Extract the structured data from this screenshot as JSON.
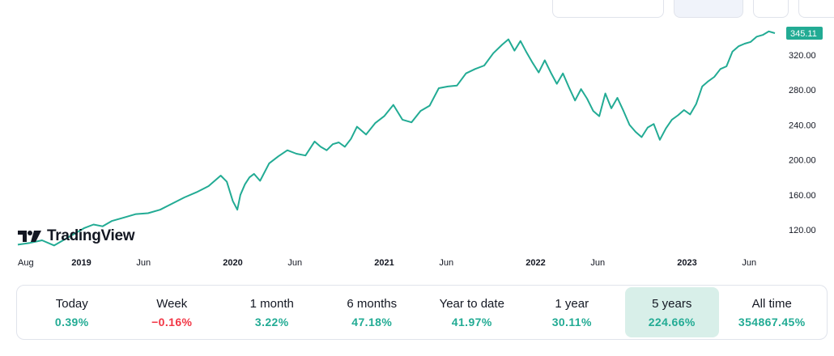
{
  "colors": {
    "line": "#22ab94",
    "accent": "#22ab94",
    "negative": "#f23645",
    "axis_text": "#131722",
    "active_bg": "#d8efe9"
  },
  "logo": {
    "text": "TradingView",
    "icon": "tradingview-logo-icon"
  },
  "chart_data": {
    "type": "area",
    "price_label": "345.11",
    "y_ticks": [
      "320.00",
      "280.00",
      "240.00",
      "200.00",
      "160.00",
      "120.00"
    ],
    "y_tick_values": [
      320,
      280,
      240,
      200,
      160,
      120
    ],
    "x_ticks": [
      {
        "label": "Aug",
        "t": 0.0,
        "bold": false
      },
      {
        "label": "2019",
        "t": 0.42,
        "bold": true
      },
      {
        "label": "Jun",
        "t": 0.83,
        "bold": false
      },
      {
        "label": "2020",
        "t": 1.42,
        "bold": true
      },
      {
        "label": "Jun",
        "t": 1.83,
        "bold": false
      },
      {
        "label": "2021",
        "t": 2.42,
        "bold": true
      },
      {
        "label": "Jun",
        "t": 2.83,
        "bold": false
      },
      {
        "label": "2022",
        "t": 3.42,
        "bold": true
      },
      {
        "label": "Jun",
        "t": 3.83,
        "bold": false
      },
      {
        "label": "2023",
        "t": 4.42,
        "bold": true
      },
      {
        "label": "Jun",
        "t": 4.83,
        "bold": false
      }
    ],
    "ylim": [
      108,
      350
    ],
    "xlim": [
      0,
      5.0
    ],
    "series": [
      {
        "name": "price",
        "x": [
          0.0,
          0.08,
          0.16,
          0.24,
          0.32,
          0.38,
          0.44,
          0.5,
          0.56,
          0.62,
          0.7,
          0.78,
          0.86,
          0.94,
          1.02,
          1.1,
          1.18,
          1.26,
          1.34,
          1.38,
          1.42,
          1.45,
          1.47,
          1.5,
          1.53,
          1.56,
          1.6,
          1.66,
          1.72,
          1.78,
          1.84,
          1.9,
          1.96,
          2.0,
          2.04,
          2.08,
          2.12,
          2.16,
          2.2,
          2.24,
          2.3,
          2.36,
          2.42,
          2.48,
          2.54,
          2.6,
          2.66,
          2.72,
          2.78,
          2.84,
          2.9,
          2.96,
          3.02,
          3.08,
          3.14,
          3.2,
          3.24,
          3.28,
          3.32,
          3.36,
          3.4,
          3.44,
          3.48,
          3.52,
          3.56,
          3.6,
          3.64,
          3.68,
          3.72,
          3.76,
          3.8,
          3.84,
          3.88,
          3.92,
          3.96,
          4.0,
          4.04,
          4.08,
          4.12,
          4.16,
          4.2,
          4.24,
          4.28,
          4.32,
          4.36,
          4.4,
          4.44,
          4.48,
          4.52,
          4.56,
          4.6,
          4.64,
          4.68,
          4.72,
          4.76,
          4.8,
          4.84,
          4.88,
          4.92,
          4.96,
          5.0
        ],
        "y": [
          103,
          105,
          108,
          102,
          110,
          116,
          122,
          126,
          124,
          130,
          134,
          138,
          139,
          143,
          150,
          157,
          163,
          170,
          182,
          175,
          153,
          143,
          160,
          172,
          180,
          184,
          176,
          196,
          204,
          211,
          207,
          205,
          221,
          215,
          211,
          218,
          220,
          215,
          224,
          238,
          229,
          242,
          250,
          263,
          246,
          243,
          256,
          262,
          282,
          284,
          285,
          299,
          304,
          308,
          322,
          332,
          338,
          325,
          336,
          323,
          311,
          300,
          314,
          300,
          287,
          299,
          283,
          268,
          281,
          270,
          256,
          250,
          276,
          259,
          271,
          256,
          240,
          232,
          226,
          237,
          241,
          223,
          236,
          246,
          251,
          257,
          252,
          264,
          284,
          290,
          295,
          304,
          307,
          324,
          330,
          333,
          335,
          341,
          343,
          347,
          345
        ]
      }
    ]
  },
  "periods": [
    {
      "label": "Today",
      "value": "0.39%",
      "dir": "pos",
      "active": false
    },
    {
      "label": "Week",
      "value": "−0.16%",
      "dir": "neg",
      "active": false
    },
    {
      "label": "1 month",
      "value": "3.22%",
      "dir": "pos",
      "active": false
    },
    {
      "label": "6 months",
      "value": "47.18%",
      "dir": "pos",
      "active": false
    },
    {
      "label": "Year to date",
      "value": "41.97%",
      "dir": "pos",
      "active": false
    },
    {
      "label": "1 year",
      "value": "30.11%",
      "dir": "pos",
      "active": false
    },
    {
      "label": "5 years",
      "value": "224.66%",
      "dir": "pos",
      "active": true
    },
    {
      "label": "All time",
      "value": "354867.45%",
      "dir": "pos",
      "active": false
    }
  ]
}
